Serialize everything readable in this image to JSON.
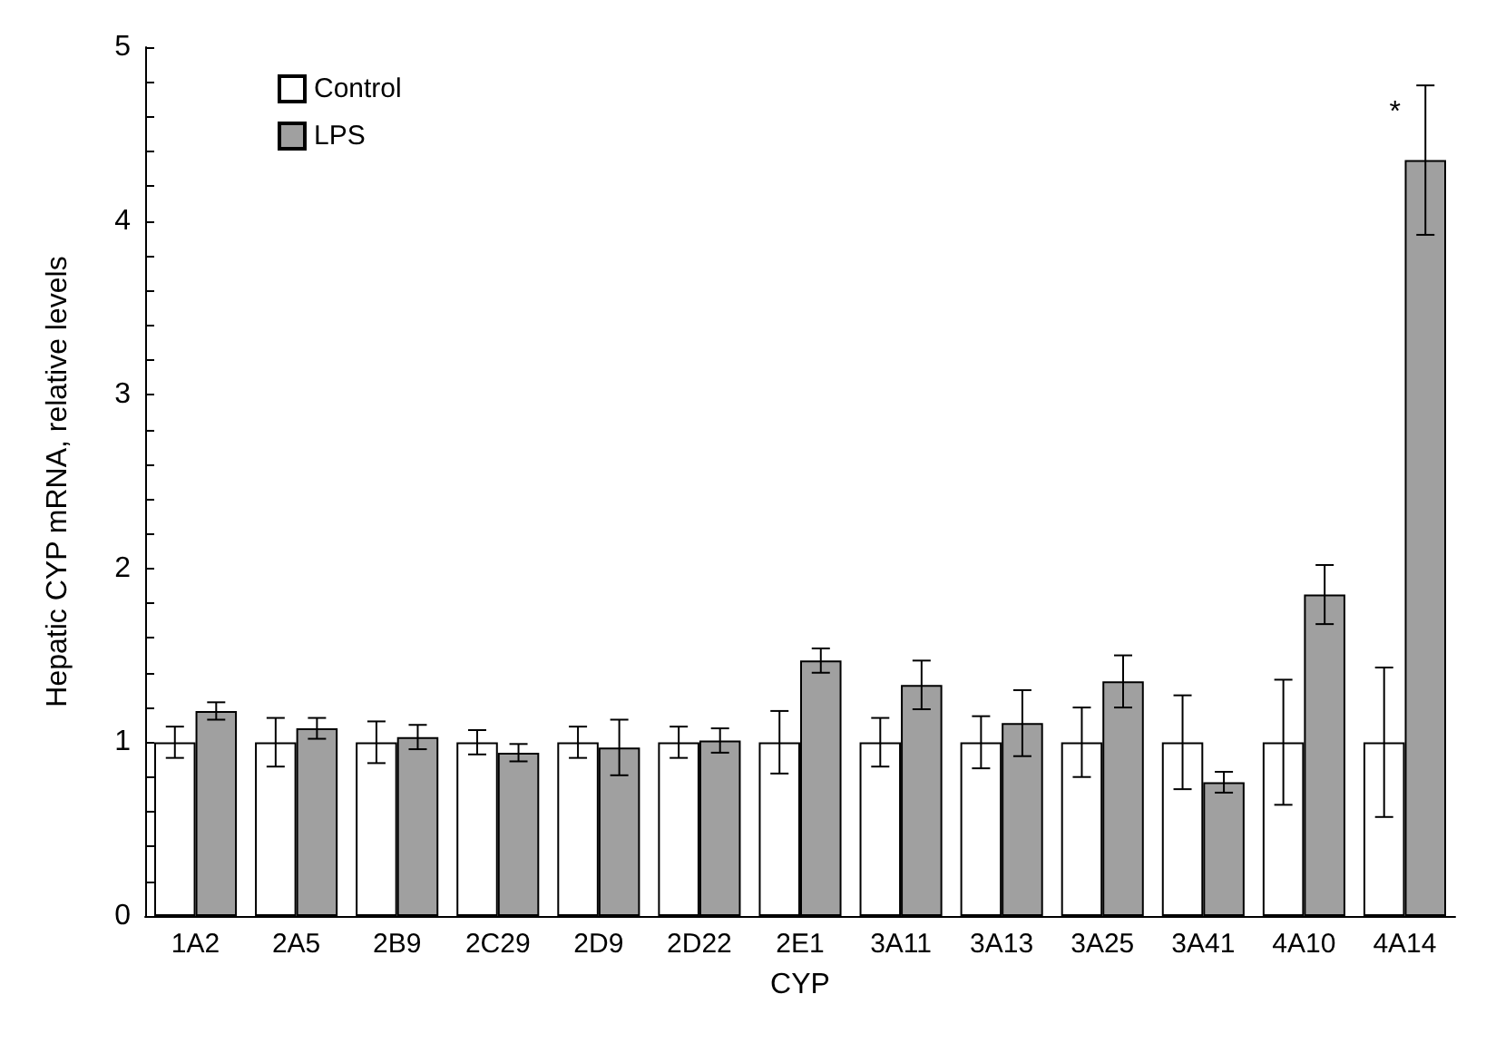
{
  "chart_data": {
    "type": "bar",
    "xlabel": "CYP",
    "ylabel": "Hepatic CYP mRNA, relative levels",
    "categories": [
      "1A2",
      "2A5",
      "2B9",
      "2C29",
      "2D9",
      "2D22",
      "2E1",
      "3A11",
      "3A13",
      "3A25",
      "3A41",
      "4A10",
      "4A14"
    ],
    "series": [
      {
        "name": "Control",
        "color": "#ffffff",
        "values": [
          1,
          1,
          1,
          1,
          1,
          1,
          1,
          1,
          1,
          1,
          1,
          1,
          1
        ],
        "errors": [
          0.09,
          0.14,
          0.12,
          0.07,
          0.09,
          0.09,
          0.18,
          0.14,
          0.15,
          0.2,
          0.27,
          0.36,
          0.43
        ]
      },
      {
        "name": "LPS",
        "color": "#a0a0a0",
        "values": [
          1.18,
          1.08,
          1.03,
          0.94,
          0.97,
          1.01,
          1.47,
          1.33,
          1.11,
          1.35,
          0.77,
          1.85,
          4.35
        ],
        "errors": [
          0.05,
          0.06,
          0.07,
          0.05,
          0.16,
          0.07,
          0.07,
          0.14,
          0.19,
          0.15,
          0.06,
          0.17,
          0.43
        ]
      }
    ],
    "ylim": [
      0,
      5
    ],
    "yticks": [
      0,
      {
        "value": 0.2,
        "label": null
      },
      {
        "value": 0.4,
        "label": null
      },
      {
        "value": 0.6,
        "label": null
      },
      {
        "value": 0.8,
        "label": null
      },
      1,
      {
        "value": 1.2,
        "label": null
      },
      {
        "value": 1.4,
        "label": null
      },
      {
        "value": 1.6,
        "label": null
      },
      {
        "value": 1.8,
        "label": null
      },
      2,
      {
        "value": 2.2,
        "label": null
      },
      {
        "value": 2.4,
        "label": null
      },
      {
        "value": 2.6,
        "label": null
      },
      {
        "value": 2.8,
        "label": null
      },
      3,
      {
        "value": 3.2,
        "label": null
      },
      {
        "value": 3.4,
        "label": null
      },
      {
        "value": 3.6,
        "label": null
      },
      {
        "value": 3.8,
        "label": null
      },
      4,
      {
        "value": 4.2,
        "label": null
      },
      {
        "value": 4.4,
        "label": null
      },
      {
        "value": 4.6,
        "label": null
      },
      {
        "value": 4.8,
        "label": null
      },
      5
    ],
    "annotations": [
      "*"
    ],
    "legend": "top left",
    "grid": false
  }
}
